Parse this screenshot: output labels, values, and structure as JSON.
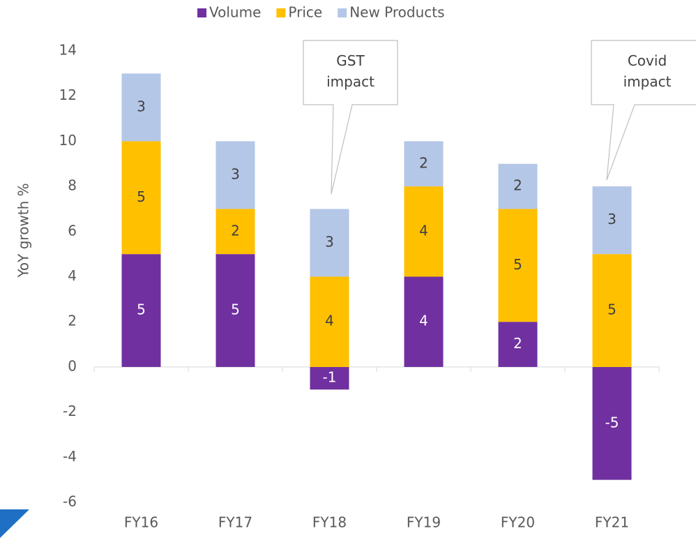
{
  "chart_data": {
    "type": "stacked_bar",
    "categories": [
      "FY16",
      "FY17",
      "FY18",
      "FY19",
      "FY20",
      "FY21"
    ],
    "series": [
      {
        "name": "Volume",
        "color": "#7030a0",
        "values": [
          5,
          5,
          -1,
          4,
          2,
          -5
        ]
      },
      {
        "name": "Price",
        "color": "#ffc000",
        "values": [
          5,
          2,
          4,
          4,
          5,
          5
        ]
      },
      {
        "name": "New Products",
        "color": "#b4c7e7",
        "values": [
          3,
          3,
          3,
          2,
          2,
          3
        ]
      }
    ],
    "ylabel": "YoY growth %",
    "ylim": [
      -6,
      14
    ],
    "yticks": [
      -6,
      -4,
      -2,
      0,
      2,
      4,
      6,
      8,
      10,
      12,
      14
    ],
    "legend": "top",
    "annotations": [
      {
        "text": "GST impact"
      },
      {
        "text": "Covid impact"
      }
    ]
  }
}
